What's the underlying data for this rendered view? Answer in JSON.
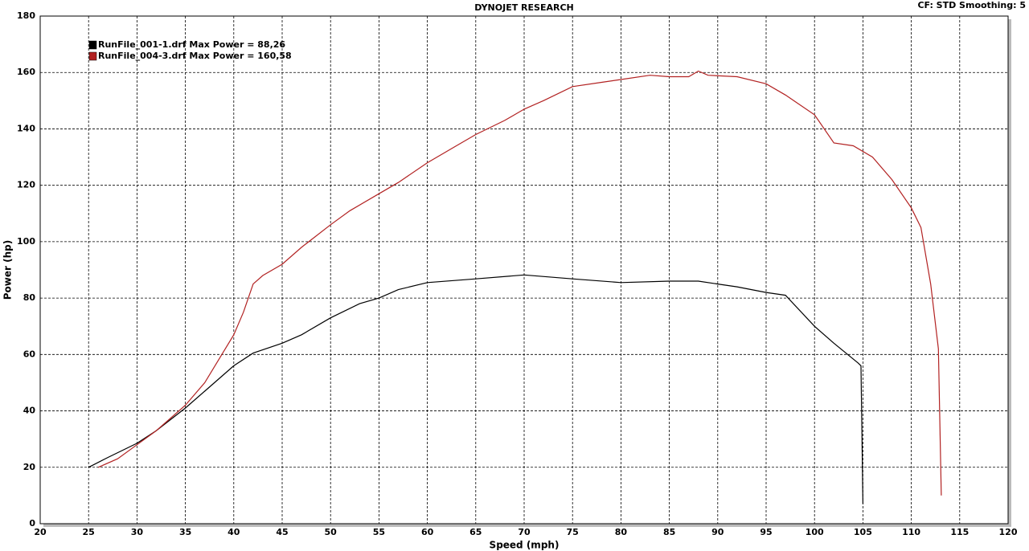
{
  "chart_data": {
    "type": "line",
    "title": "DYNOJET RESEARCH",
    "subtitle": "CF: STD  Smoothing: 5",
    "x_label": "Speed (mph)",
    "y_label": "Power (hp)",
    "xlim": [
      20,
      120
    ],
    "ylim": [
      0,
      180
    ],
    "xticks": [
      20,
      25,
      30,
      35,
      40,
      45,
      50,
      55,
      60,
      65,
      70,
      75,
      80,
      85,
      90,
      95,
      100,
      105,
      110,
      115,
      120
    ],
    "yticks": [
      0,
      20,
      40,
      60,
      80,
      100,
      120,
      140,
      160,
      180
    ],
    "grid": true,
    "legend": "upper left",
    "series": [
      {
        "name": "RunFile_001-1.drf Max Power = 88,26",
        "color": "#000000",
        "x": [
          25,
          27,
          30,
          32,
          35,
          37,
          40,
          42,
          45,
          47,
          50,
          53,
          55,
          57,
          60,
          65,
          70,
          75,
          80,
          85,
          88,
          90,
          92,
          95,
          97,
          100,
          102,
          104.5,
          104.8,
          105
        ],
        "values": [
          20,
          23.5,
          28.5,
          33,
          41,
          47,
          56,
          60.5,
          64,
          67,
          73,
          78,
          80,
          83,
          85.5,
          86.8,
          88.2,
          86.8,
          85.5,
          86,
          86,
          85,
          84,
          82,
          81,
          70,
          64,
          57,
          56,
          7
        ]
      },
      {
        "name": "RunFile_004-3.drf Max Power = 160,58",
        "color": "#b22222",
        "x": [
          26,
          28,
          30,
          32,
          35,
          37,
          40,
          41,
          42,
          43,
          45,
          47,
          50,
          52,
          55,
          57,
          60,
          63,
          65,
          68,
          70,
          72,
          75,
          78,
          80,
          83,
          85,
          87,
          88,
          89,
          92,
          95,
          97,
          100,
          102,
          104,
          106,
          108,
          110,
          111,
          112,
          112.8,
          113.1
        ],
        "values": [
          20,
          23,
          28,
          33,
          42,
          50,
          67,
          75,
          85,
          88,
          92,
          98,
          106,
          111,
          117,
          121,
          128,
          134,
          138,
          143,
          147,
          150,
          155,
          156.5,
          157.5,
          159,
          158.5,
          158.5,
          160.5,
          159,
          158.5,
          156,
          152,
          145,
          135,
          134,
          130,
          122,
          112,
          105,
          85,
          62,
          10
        ]
      }
    ]
  }
}
